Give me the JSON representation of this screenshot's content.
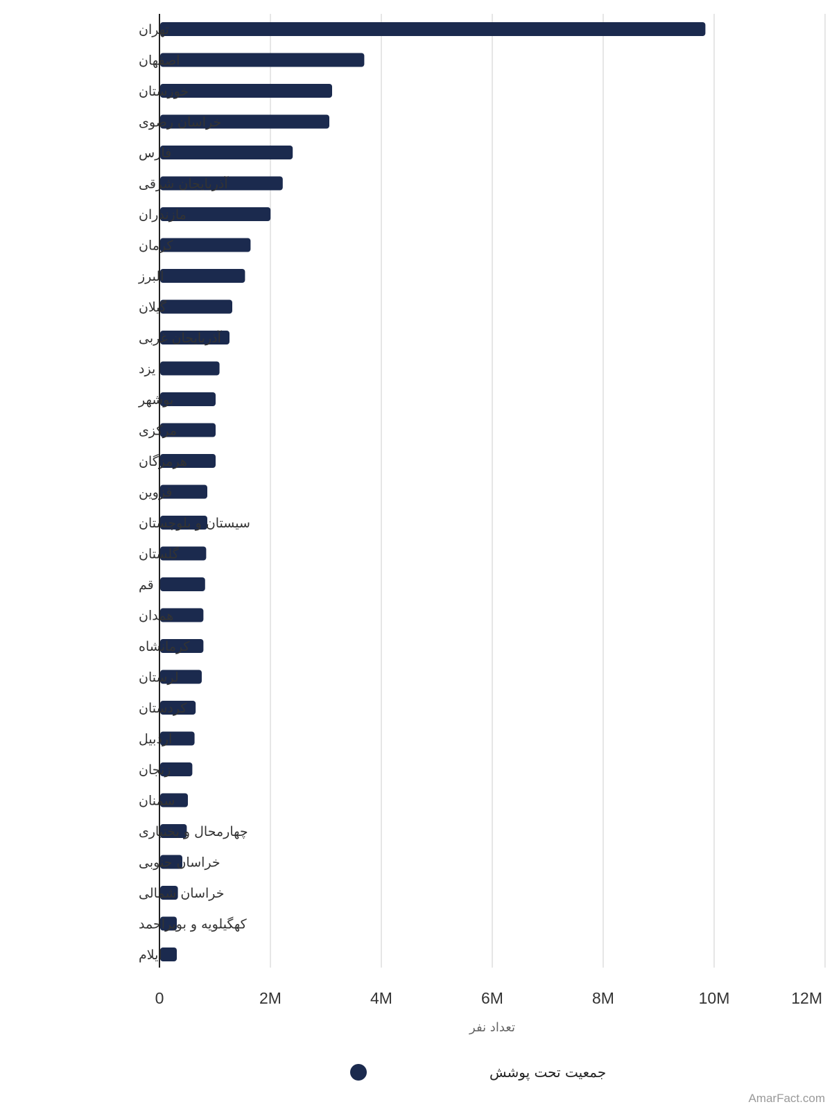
{
  "chart_data": {
    "type": "bar",
    "orientation": "horizontal",
    "categories": [
      "تهران",
      "اصفهان",
      "خوزستان",
      "خراسان رضوی",
      "فارس",
      "آذربایجان شرقی",
      "مازندران",
      "کرمان",
      "البرز",
      "گیلان",
      "آذربایجان غربی",
      "یزد",
      "بوشهر",
      "مرکزی",
      "هرمزگان",
      "قزوین",
      "سیستان و بلوچستان",
      "گلستان",
      "قم",
      "همدان",
      "کرمانشاه",
      "لرستان",
      "کردستان",
      "اردبیل",
      "زنجان",
      "سمنان",
      "چهارمحال و بختیاری",
      "خراسان جنوبی",
      "خراسان شمالی",
      "کهگیلویه و بویراحمد",
      "ایلام"
    ],
    "series": [
      {
        "name": "جمعیت تحت پوشش",
        "color": "#1b2a4e",
        "values": [
          9830000,
          3680000,
          3100000,
          3050000,
          2390000,
          2210000,
          1990000,
          1630000,
          1530000,
          1300000,
          1250000,
          1070000,
          1000000,
          1000000,
          1000000,
          850000,
          850000,
          830000,
          810000,
          780000,
          780000,
          750000,
          640000,
          620000,
          580000,
          500000,
          480000,
          400000,
          320000,
          300000,
          300000
        ]
      }
    ],
    "xlim": [
      0,
      12000000
    ],
    "ticks": [
      {
        "value": 0,
        "label": "0"
      },
      {
        "value": 2000000,
        "label": "2M"
      },
      {
        "value": 4000000,
        "label": "4M"
      },
      {
        "value": 6000000,
        "label": "6M"
      },
      {
        "value": 8000000,
        "label": "8M"
      },
      {
        "value": 10000000,
        "label": "10M"
      },
      {
        "value": 12000000,
        "label": "12M"
      }
    ],
    "xlabel": "تعداد نفر",
    "grid": true,
    "legend_position": "bottom-center"
  },
  "credit": "AmarFact.com"
}
